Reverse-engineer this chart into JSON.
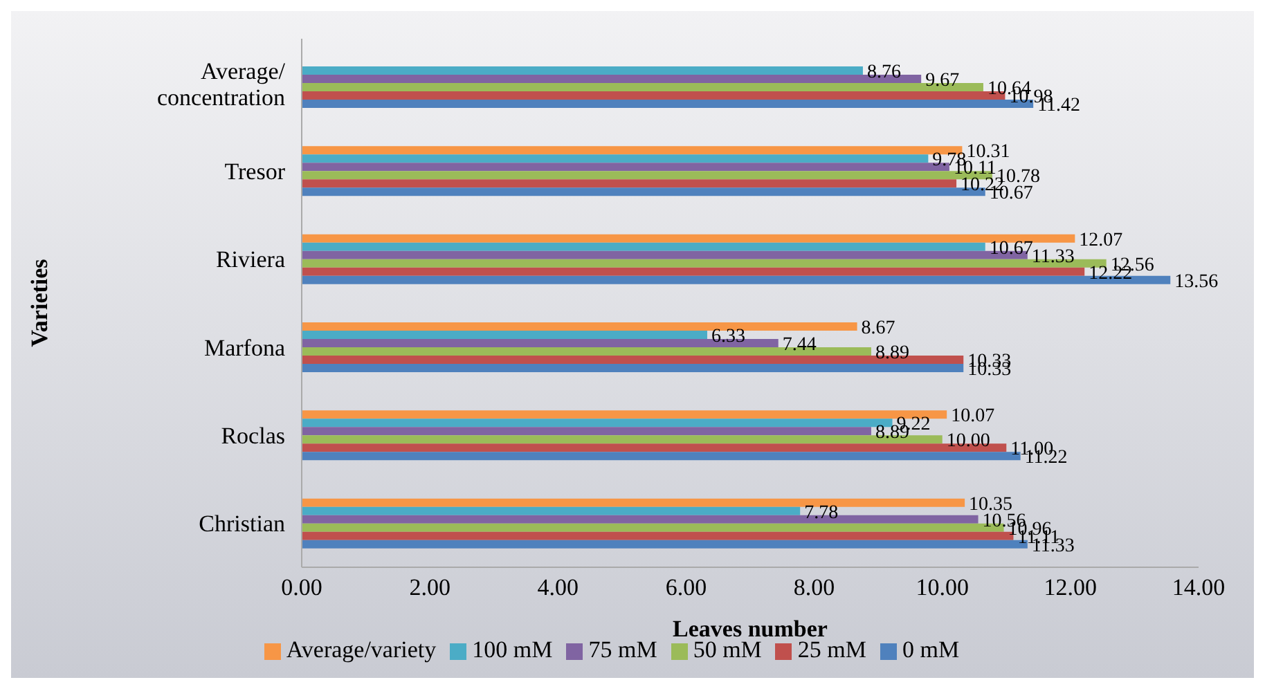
{
  "chart_data": {
    "type": "bar",
    "orientation": "horizontal",
    "xlabel": "Leaves number",
    "ylabel": "Varieties",
    "categories": [
      "Average/ concentration",
      "Tresor",
      "Riviera",
      "Marfona",
      "Roclas",
      "Christian"
    ],
    "series": [
      {
        "name": "Average/variety",
        "color": "#f79646",
        "values": [
          null,
          10.31,
          12.07,
          8.67,
          10.07,
          10.35
        ],
        "value_labels": [
          null,
          "10.31",
          "12.07",
          "8.67",
          "10.07",
          "10.35"
        ]
      },
      {
        "name": "100 mM",
        "color": "#4bacc6",
        "values": [
          8.76,
          9.78,
          10.67,
          6.33,
          9.22,
          7.78
        ],
        "value_labels": [
          "8.76",
          "9.78",
          "10.67",
          "6.33",
          "9.22",
          "7.78"
        ]
      },
      {
        "name": "75 mM",
        "color": "#8064a2",
        "values": [
          9.67,
          10.11,
          11.33,
          7.44,
          8.89,
          10.56
        ],
        "value_labels": [
          "9.67",
          "10.11",
          "11.33",
          "7.44",
          "8.89",
          "10.56"
        ]
      },
      {
        "name": "50 mM",
        "color": "#9bbb59",
        "values": [
          10.64,
          10.78,
          12.56,
          8.89,
          10.0,
          10.96
        ],
        "value_labels": [
          "10.64",
          "10.78",
          "12.56",
          "8.89",
          "10.00",
          "10.96"
        ]
      },
      {
        "name": "25 mM",
        "color": "#c0504d",
        "values": [
          10.98,
          10.22,
          12.22,
          10.33,
          11.0,
          11.11
        ],
        "value_labels": [
          "10.98",
          "10.22",
          "12.22",
          "10.33",
          "11.00",
          "11.11"
        ]
      },
      {
        "name": "0 mM",
        "color": "#4f81bd",
        "values": [
          11.42,
          10.67,
          13.56,
          10.33,
          11.22,
          11.33
        ],
        "value_labels": [
          "11.42",
          "10.67",
          "13.56",
          "10.33",
          "11.22",
          "11.33"
        ]
      }
    ],
    "xlim": [
      0,
      14
    ],
    "xticks": [
      {
        "value": 0,
        "label": "0.00"
      },
      {
        "value": 2,
        "label": "2.00"
      },
      {
        "value": 4,
        "label": "4.00"
      },
      {
        "value": 6,
        "label": "6.00"
      },
      {
        "value": 8,
        "label": "8.00"
      },
      {
        "value": 10,
        "label": "10.00"
      },
      {
        "value": 12,
        "label": "12.00"
      },
      {
        "value": 14,
        "label": "14.00"
      }
    ],
    "grid": false,
    "legend": "bottom"
  }
}
